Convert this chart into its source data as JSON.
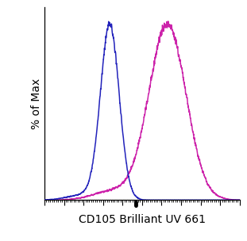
{
  "title": "",
  "xlabel": "CD105 Brilliant UV 661",
  "ylabel": "% of Max",
  "xlabel_fontsize": 10,
  "ylabel_fontsize": 10,
  "background_color": "#ffffff",
  "plot_bg_color": "#ffffff",
  "blue_color": "#2222bb",
  "magenta_color": "#cc22aa",
  "x_min": 0.0,
  "x_max": 1.0,
  "y_min": 0.0,
  "y_max": 1.08,
  "line_width": 1.1
}
